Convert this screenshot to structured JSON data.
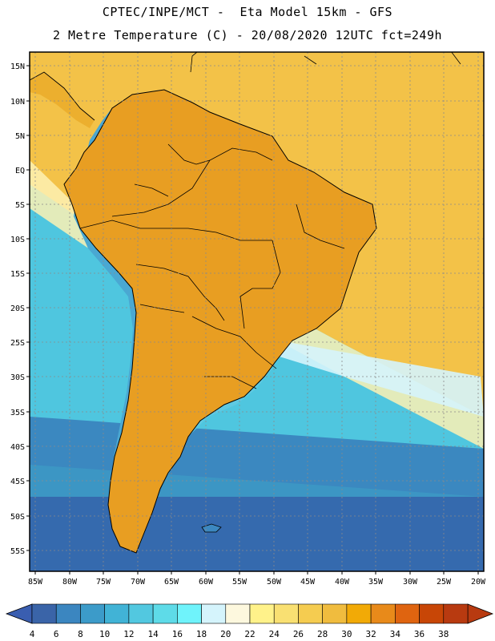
{
  "header": {
    "line1": "CPTEC/INPE/MCT -  Eta Model 15km - GFS",
    "line2": "2 Metre Temperature (C) - 20/08/2020 12UTC fct=249h"
  },
  "map": {
    "lat_labels": [
      "15N",
      "10N",
      "5N",
      "EQ",
      "5S",
      "10S",
      "15S",
      "20S",
      "25S",
      "30S",
      "35S",
      "40S",
      "45S",
      "50S",
      "55S"
    ],
    "lon_labels": [
      "85W",
      "80W",
      "75W",
      "70W",
      "65W",
      "60W",
      "55W",
      "50W",
      "45W",
      "40W",
      "35W",
      "30W",
      "25W",
      "20W"
    ],
    "ocean_color": "#3fb8d6",
    "north_warm_color": "#f2c04a",
    "interior_hot_color": "#d98a1c"
  },
  "colorbar": {
    "labels": [
      "4",
      "6",
      "8",
      "10",
      "12",
      "14",
      "16",
      "18",
      "20",
      "22",
      "24",
      "26",
      "28",
      "30",
      "32",
      "34",
      "36",
      "38"
    ],
    "colors": [
      "#3a64a8",
      "#3b86c0",
      "#3c9bc9",
      "#41b3d6",
      "#52c8e0",
      "#5edbe8",
      "#6ff3fb",
      "#d5f4fc",
      "#fdf8de",
      "#fff28a",
      "#f9e072",
      "#f5cc50",
      "#f0bc3e",
      "#f2aa06",
      "#e88a1a",
      "#df6410",
      "#c84606",
      "#b83a10"
    ],
    "low_arrow_color": "#3a5eb0",
    "high_arrow_color": "#b83a10"
  }
}
